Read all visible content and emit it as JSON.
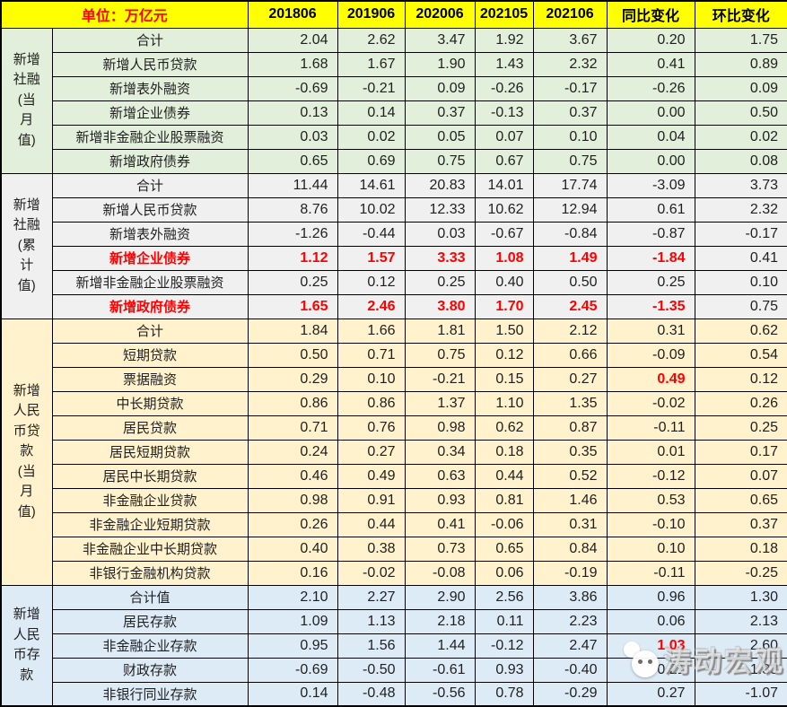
{
  "colors": {
    "header_bg": "#FFFF00",
    "unit_text": "#FF0000",
    "highlight_red": "#FF0000",
    "border": "#000000",
    "group_green": "#E2EFDA",
    "group_gray": "#F0F0F0",
    "group_cream": "#FFF2CC",
    "group_blue": "#DDEBF7"
  },
  "watermark": {
    "text": "涛动宏观",
    "logo": "wechat-bubble-logo"
  },
  "chart_data": {
    "type": "table",
    "unit_label": "单位：万亿元",
    "columns": [
      "201806",
      "201906",
      "202006",
      "202105",
      "202106",
      "同比变化",
      "环比变化"
    ],
    "groups": [
      {
        "label": "新增\n社融\n(当\n月\n值)",
        "bg": "#E2EFDA",
        "rows": [
          {
            "label": "合计",
            "values": [
              "2.04",
              "2.62",
              "3.47",
              "1.92",
              "3.67",
              "0.20",
              "1.75"
            ]
          },
          {
            "label": "新增人民币贷款",
            "values": [
              "1.68",
              "1.67",
              "1.90",
              "1.43",
              "2.32",
              "0.41",
              "0.89"
            ]
          },
          {
            "label": "新增表外融资",
            "values": [
              "-0.69",
              "-0.21",
              "0.09",
              "-0.26",
              "-0.17",
              "-0.26",
              "0.09"
            ]
          },
          {
            "label": "新增企业债券",
            "values": [
              "0.13",
              "0.14",
              "0.37",
              "-0.13",
              "0.37",
              "0.00",
              "0.50"
            ]
          },
          {
            "label": "新增非金融企业股票融资",
            "values": [
              "0.03",
              "0.02",
              "0.05",
              "0.07",
              "0.10",
              "0.04",
              "0.02"
            ]
          },
          {
            "label": "新增政府债券",
            "values": [
              "0.65",
              "0.69",
              "0.75",
              "0.67",
              "0.75",
              "0.00",
              "0.08"
            ]
          }
        ]
      },
      {
        "label": "新增\n社融\n(累\n计\n值)",
        "bg": "#F0F0F0",
        "rows": [
          {
            "label": "合计",
            "values": [
              "11.44",
              "14.61",
              "20.83",
              "14.01",
              "17.74",
              "-3.09",
              "3.73"
            ]
          },
          {
            "label": "新增人民币贷款",
            "values": [
              "8.76",
              "10.02",
              "12.33",
              "10.62",
              "12.94",
              "0.61",
              "2.32"
            ]
          },
          {
            "label": "新增表外融资",
            "values": [
              "-1.26",
              "-0.44",
              "0.03",
              "-0.67",
              "-0.84",
              "-0.87",
              "-0.17"
            ]
          },
          {
            "label": "新增企业债券",
            "red_label": true,
            "red_values": [
              0,
              1,
              2,
              3,
              4,
              5
            ],
            "values": [
              "1.12",
              "1.57",
              "3.33",
              "1.08",
              "1.49",
              "-1.84",
              "0.41"
            ]
          },
          {
            "label": "新增非金融企业股票融资",
            "values": [
              "0.25",
              "0.12",
              "0.25",
              "0.40",
              "0.50",
              "0.25",
              "0.10"
            ]
          },
          {
            "label": "新增政府债券",
            "red_label": true,
            "red_values": [
              0,
              1,
              2,
              3,
              4,
              5
            ],
            "values": [
              "1.65",
              "2.46",
              "3.80",
              "1.70",
              "2.45",
              "-1.35",
              "0.75"
            ]
          }
        ]
      },
      {
        "label": "新增\n人民\n币贷\n款\n(当\n月\n值)",
        "bg": "#FFF2CC",
        "rows": [
          {
            "label": "合计",
            "values": [
              "1.84",
              "1.66",
              "1.81",
              "1.50",
              "2.12",
              "0.31",
              "0.62"
            ]
          },
          {
            "label": "短期贷款",
            "values": [
              "0.50",
              "0.71",
              "0.75",
              "0.12",
              "0.66",
              "-0.09",
              "0.54"
            ]
          },
          {
            "label": "票据融资",
            "red_values": [
              5
            ],
            "values": [
              "0.29",
              "0.10",
              "-0.21",
              "0.15",
              "0.27",
              "0.49",
              "0.12"
            ]
          },
          {
            "label": "中长期贷款",
            "values": [
              "0.86",
              "0.86",
              "1.37",
              "1.10",
              "1.35",
              "-0.02",
              "0.26"
            ]
          },
          {
            "label": "居民贷款",
            "values": [
              "0.71",
              "0.76",
              "0.98",
              "0.62",
              "0.87",
              "-0.11",
              "0.25"
            ]
          },
          {
            "label": "居民短期贷款",
            "values": [
              "0.24",
              "0.27",
              "0.34",
              "0.18",
              "0.35",
              "0.01",
              "0.17"
            ]
          },
          {
            "label": "居民中长期贷款",
            "values": [
              "0.46",
              "0.49",
              "0.63",
              "0.44",
              "0.52",
              "-0.12",
              "0.07"
            ]
          },
          {
            "label": "非金融企业贷款",
            "values": [
              "0.98",
              "0.91",
              "0.93",
              "0.81",
              "1.46",
              "0.53",
              "0.65"
            ]
          },
          {
            "label": "非金融企业短期贷款",
            "values": [
              "0.26",
              "0.44",
              "0.41",
              "-0.06",
              "0.31",
              "-0.10",
              "0.37"
            ]
          },
          {
            "label": "非金融企业中长期贷款",
            "values": [
              "0.40",
              "0.38",
              "0.73",
              "0.65",
              "0.84",
              "0.10",
              "0.18"
            ]
          },
          {
            "label": "非银行金融机构贷款",
            "values": [
              "0.16",
              "-0.02",
              "-0.08",
              "0.06",
              "-0.19",
              "-0.11",
              "-0.25"
            ]
          }
        ]
      },
      {
        "label": "新增\n人民\n币存\n款",
        "bg": "#DDEBF7",
        "rows": [
          {
            "label": "合计值",
            "values": [
              "2.10",
              "2.27",
              "2.90",
              "2.56",
              "3.86",
              "0.96",
              "1.30"
            ]
          },
          {
            "label": "居民存款",
            "values": [
              "1.09",
              "1.13",
              "2.18",
              "0.11",
              "2.23",
              "0.06",
              "2.13"
            ]
          },
          {
            "label": "非金融企业存款",
            "red_values": [
              5
            ],
            "values": [
              "0.95",
              "1.56",
              "1.44",
              "-0.12",
              "2.47",
              "1.03",
              "2.60"
            ]
          },
          {
            "label": "财政存款",
            "values": [
              "-0.69",
              "-0.50",
              "-0.61",
              "0.93",
              "-0.40",
              "0.21",
              "-1.33"
            ]
          },
          {
            "label": "非银行同业存款",
            "values": [
              "0.14",
              "-0.48",
              "-0.56",
              "0.78",
              "-0.29",
              "0.27",
              "-1.07"
            ]
          }
        ]
      }
    ]
  }
}
